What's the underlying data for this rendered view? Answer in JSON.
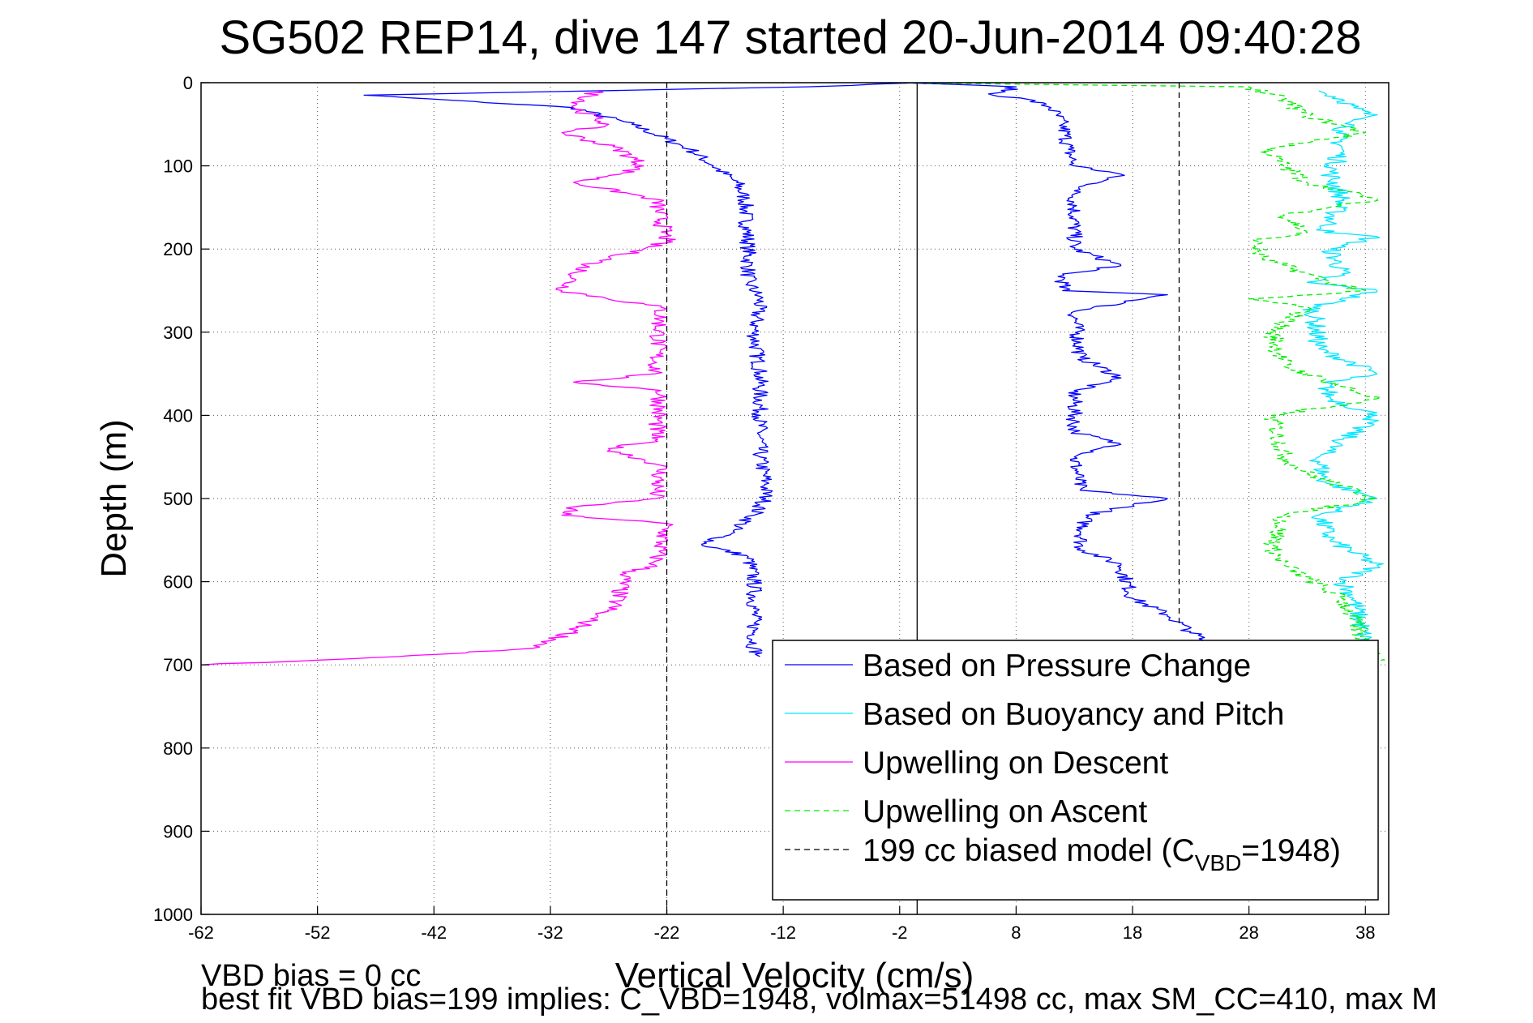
{
  "chart_data": {
    "type": "line",
    "title": "SG502 REP14, dive 147 started 20-Jun-2014 09:40:28",
    "xlabel": "Vertical Velocity (cm/s)",
    "ylabel": "Depth (m)",
    "xlim": [
      -62,
      40
    ],
    "ylim": [
      0,
      1000
    ],
    "y_reversed": true,
    "xticks": [
      -62,
      -52,
      -42,
      -32,
      -22,
      -12,
      -2,
      8,
      18,
      28,
      38
    ],
    "yticks": [
      0,
      100,
      200,
      300,
      400,
      500,
      600,
      700,
      800,
      900,
      1000
    ],
    "grid": true,
    "legend_position": "bottom-right",
    "footnotes": [
      "VBD bias = 0 cc",
      "best fit VBD bias=199 implies: C_VBD=1948, volmax=51498 cc, max SM_CC=410, max M"
    ],
    "series": [
      {
        "name": "Based on Pressure Change",
        "color": "#0000ff",
        "dash": "solid",
        "wiggle": 0.7,
        "x": [
          0,
          -10,
          -48,
          -30,
          -25,
          -20,
          -18,
          -16,
          -15.3,
          -15,
          -15,
          -14,
          -14.5,
          -14,
          -14,
          -14,
          -13.5,
          -13.5,
          -14.5,
          -17,
          -19,
          -15,
          -14.5,
          -14.5,
          -14.5,
          -14
        ],
        "y": [
          0,
          5,
          15,
          30,
          50,
          80,
          100,
          120,
          140,
          200,
          240,
          260,
          300,
          350,
          400,
          450,
          480,
          500,
          520,
          545,
          555,
          570,
          600,
          650,
          680,
          690
        ]
      },
      {
        "name": "Based on Pressure Change",
        "color": "#0000ff",
        "dash": "solid",
        "wiggle": 0.7,
        "x": [
          -2,
          8,
          6,
          9,
          11,
          12,
          12.5,
          13,
          17,
          13,
          13,
          17,
          12,
          12,
          21,
          13,
          13.5,
          17,
          13,
          13,
          17,
          13,
          13.5,
          21,
          14,
          13.5,
          17,
          18,
          21,
          23,
          24,
          22
        ],
        "y": [
          0,
          5,
          15,
          20,
          30,
          50,
          80,
          100,
          110,
          130,
          200,
          220,
          230,
          250,
          255,
          275,
          330,
          355,
          370,
          420,
          435,
          450,
          490,
          500,
          520,
          560,
          580,
          620,
          640,
          660,
          670,
          680
        ]
      },
      {
        "name": "Based on Buoyancy and Pitch",
        "color": "#00e5ff",
        "dash": "solid",
        "wiggle": 0.9,
        "x": [
          34,
          36,
          37,
          38.5,
          35.5,
          36,
          35,
          36,
          34.5,
          39,
          35,
          36,
          33,
          39,
          33.5,
          34,
          39,
          34.5,
          35,
          39,
          34,
          34.5,
          39,
          34,
          35,
          39,
          36,
          37,
          38.5
        ],
        "y": [
          10,
          20,
          30,
          40,
          60,
          80,
          110,
          140,
          180,
          185,
          200,
          230,
          240,
          250,
          270,
          320,
          350,
          360,
          380,
          400,
          450,
          480,
          500,
          520,
          550,
          580,
          600,
          620,
          700
        ]
      },
      {
        "name": "Upwelling on Descent",
        "color": "#ff00ff",
        "dash": "solid",
        "wiggle": 0.8,
        "x": [
          -28,
          -30,
          -27,
          -31,
          -26,
          -24,
          -26,
          -30,
          -23,
          -22,
          -24,
          -29,
          -31,
          -22.5,
          -23,
          -30,
          -22.5,
          -23,
          -27,
          -22.5,
          -23,
          -30,
          -31,
          -22,
          -23,
          -25.5,
          -26.5,
          -28,
          -30,
          -33.5,
          -45,
          -62
        ],
        "y": [
          10,
          30,
          50,
          60,
          80,
          100,
          110,
          120,
          140,
          190,
          200,
          220,
          250,
          270,
          350,
          360,
          370,
          430,
          440,
          460,
          500,
          510,
          520,
          530,
          580,
          590,
          630,
          640,
          660,
          680,
          690,
          700
        ]
      },
      {
        "name": "Upwelling on Ascent",
        "color": "#00ee00",
        "dash": "dashed",
        "wiggle": 0.9,
        "x": [
          -3,
          28,
          31,
          33,
          38,
          29.5,
          31,
          33,
          39,
          31,
          33,
          28.5,
          29,
          35,
          38,
          28,
          33,
          30,
          31,
          33,
          39,
          30,
          31,
          33,
          39,
          31,
          30,
          31,
          36,
          39
        ],
        "y": [
          0,
          5,
          20,
          40,
          60,
          80,
          100,
          120,
          140,
          160,
          180,
          190,
          210,
          240,
          250,
          260,
          270,
          300,
          340,
          350,
          380,
          400,
          450,
          470,
          500,
          520,
          560,
          580,
          620,
          700
        ]
      },
      {
        "name": "199 cc biased model (C_VBD=1948)",
        "color": "#000000",
        "dash": "dashed",
        "wiggle": 0,
        "x": [
          -22,
          -22
        ],
        "y": [
          0,
          1000
        ]
      },
      {
        "name": "199 cc biased model (C_VBD=1948)",
        "color": "#000000",
        "dash": "dashed",
        "wiggle": 0,
        "x": [
          22,
          22
        ],
        "y": [
          0,
          650
        ]
      }
    ],
    "reference_lines": [
      {
        "x": -0.5,
        "color": "#000000",
        "dash": "solid"
      }
    ],
    "legend": [
      {
        "label": "Based on Pressure Change",
        "color": "#0000ff",
        "dash": "solid"
      },
      {
        "label": "Based on Buoyancy and Pitch",
        "color": "#00e5ff",
        "dash": "solid"
      },
      {
        "label": "Upwelling on Descent",
        "color": "#ff00ff",
        "dash": "solid"
      },
      {
        "label": "Upwelling on Ascent",
        "color": "#00ee00",
        "dash": "dashed"
      },
      {
        "label": "199 cc biased model (C",
        "sub": "VBD",
        "suffix": "=1948)",
        "color": "#000000",
        "dash": "dashed"
      }
    ]
  }
}
